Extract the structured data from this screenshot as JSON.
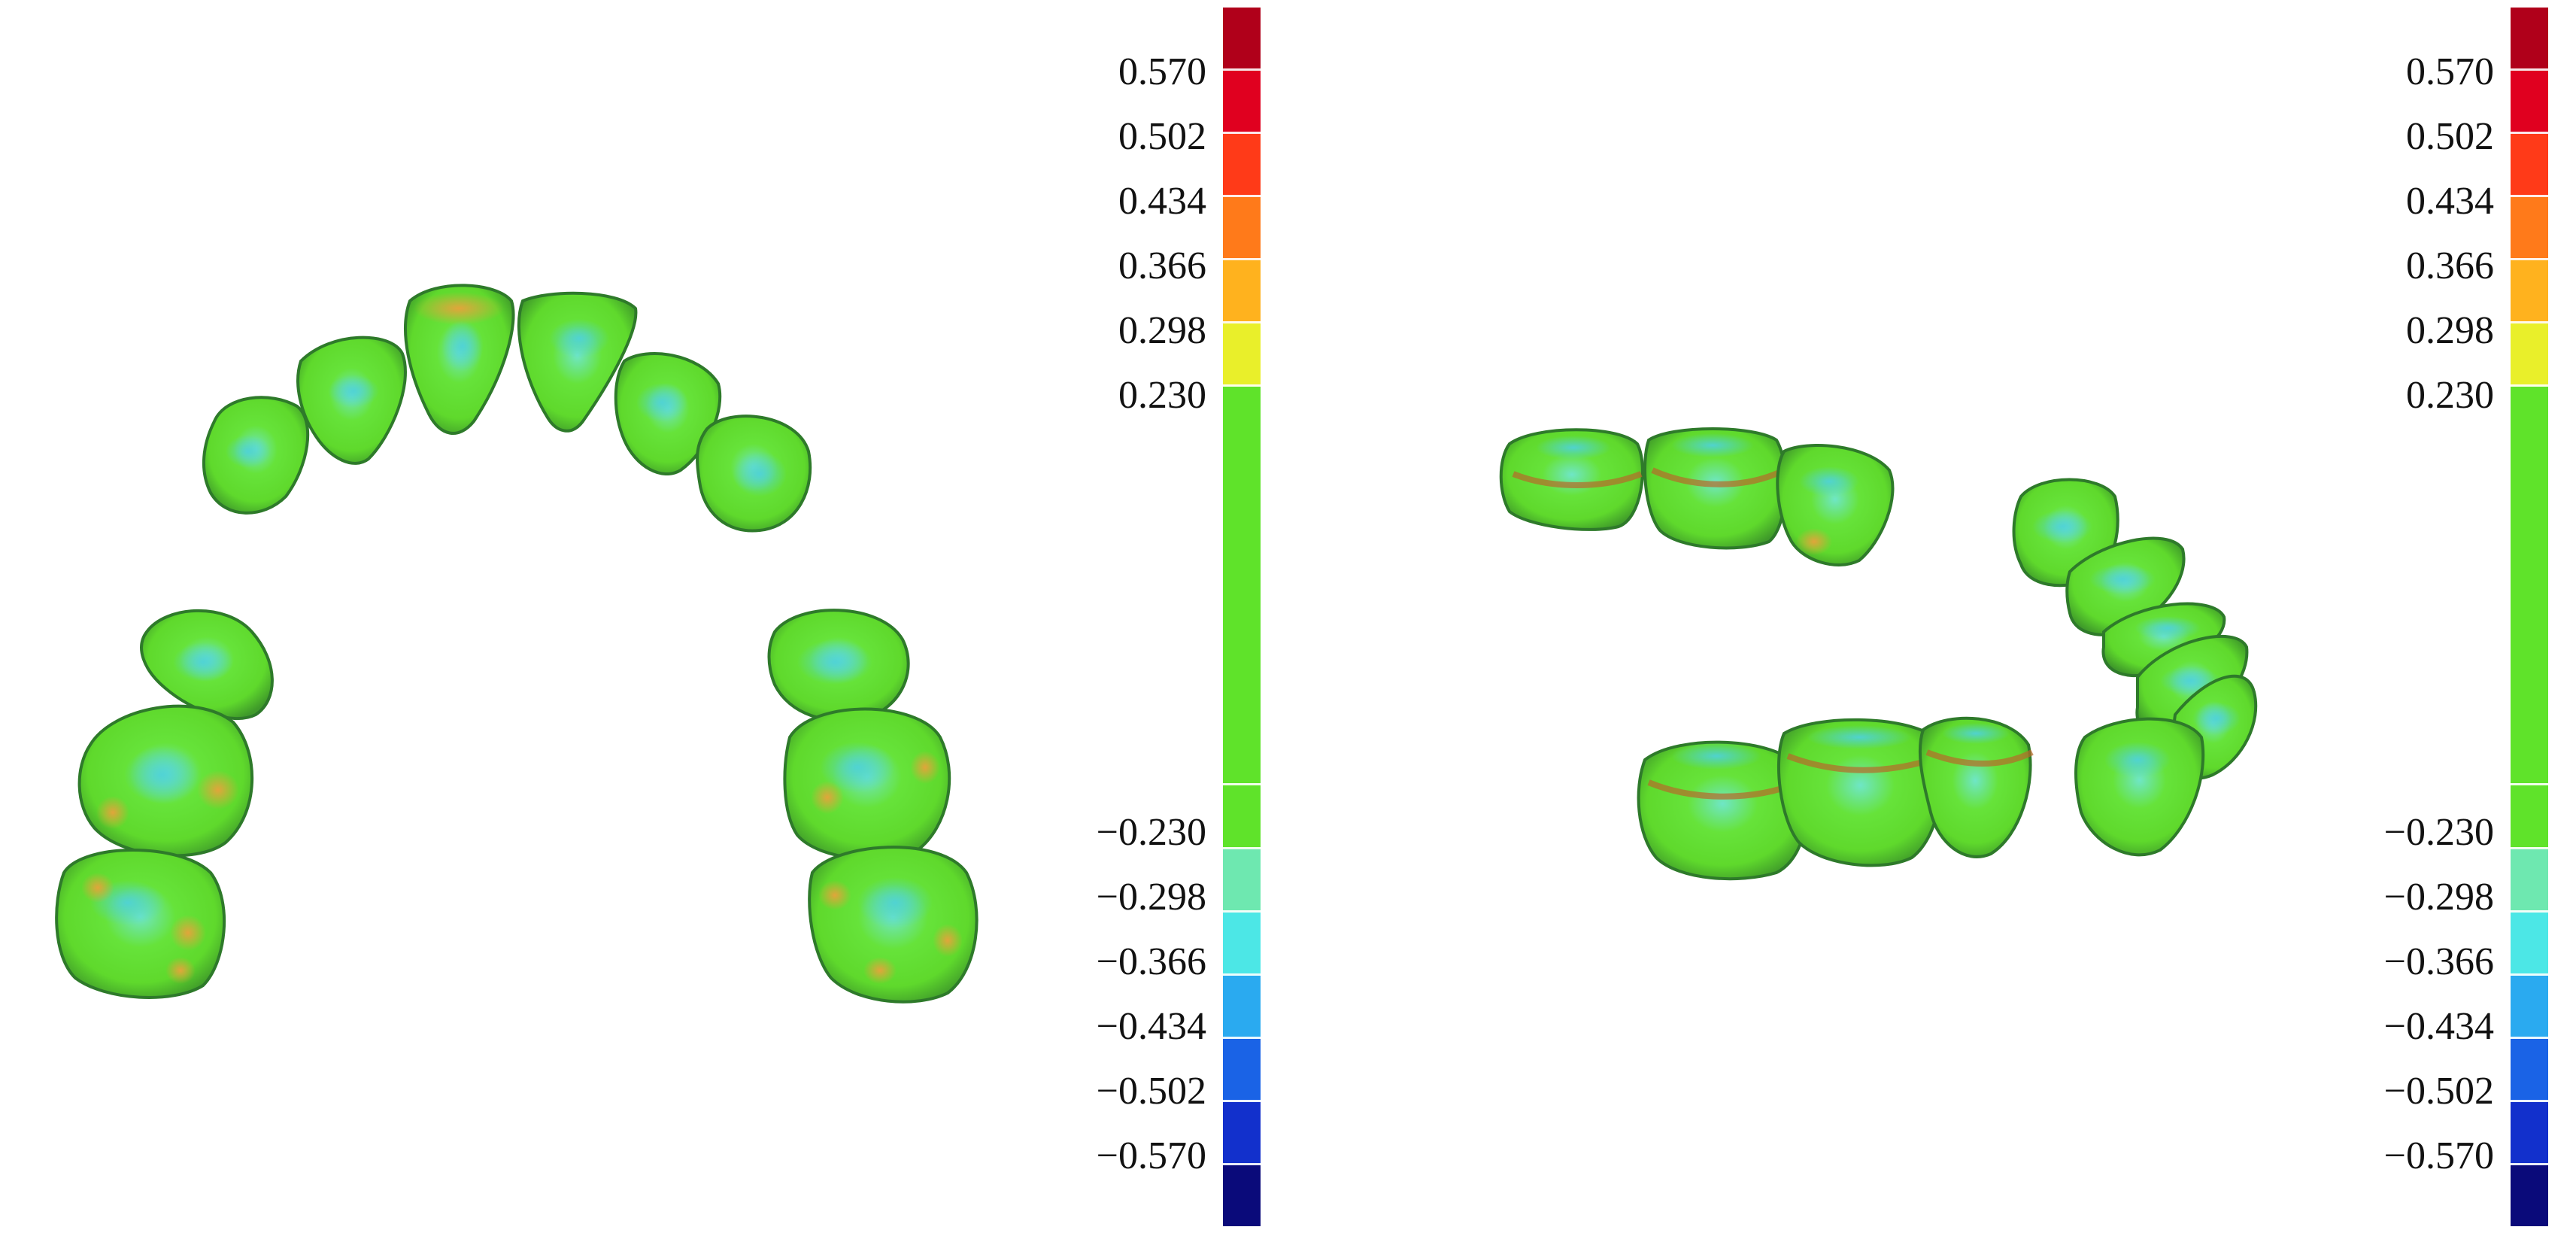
{
  "panels": [
    {
      "view": "maxillary arch occlusal view",
      "scale_labels": [
        "0.570",
        "0.502",
        "0.434",
        "0.366",
        "0.298",
        "0.230",
        "−0.230",
        "−0.298",
        "−0.366",
        "−0.434",
        "−0.502",
        "−0.570"
      ]
    },
    {
      "view": "mandibular arch oblique view",
      "scale_labels": [
        "0.570",
        "0.502",
        "0.434",
        "0.366",
        "0.298",
        "0.230",
        "−0.230",
        "−0.298",
        "−0.366",
        "−0.434",
        "−0.502",
        "−0.570"
      ]
    }
  ],
  "colors": {
    "scale": [
      "#b0001a",
      "#e0001f",
      "#ff3a18",
      "#ff7a1a",
      "#ffb21e",
      "#e9ef2a",
      "#5fe32a",
      "#5fe32a",
      "#6ee8b0",
      "#4ce7e6",
      "#2aaaf0",
      "#1a63e6",
      "#1230cc",
      "#0a0a7a"
    ],
    "tooth_base": "#5fe32a",
    "tooth_warm": "#e6a43a",
    "tooth_cool": "#4fd0c8",
    "tooth_shadow": "#2e7a2a"
  }
}
